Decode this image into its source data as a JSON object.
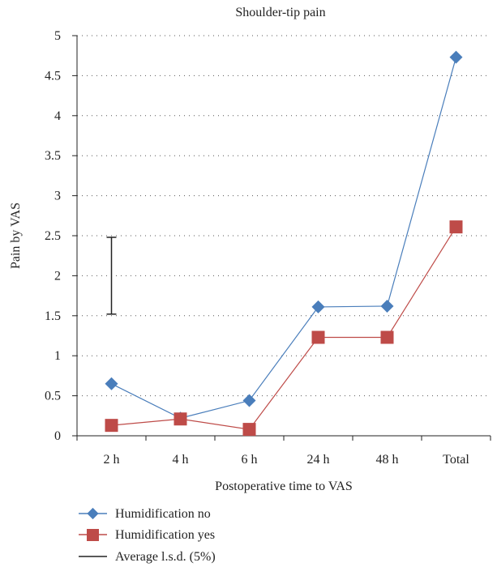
{
  "chart_data": {
    "type": "line",
    "title": "Shoulder-tip pain",
    "xlabel": "Postoperative time to VAS",
    "ylabel": "Pain by VAS",
    "categories": [
      "2 h",
      "4 h",
      "6 h",
      "24 h",
      "48 h",
      "Total"
    ],
    "ylim": [
      0,
      5
    ],
    "yticks": [
      "0",
      "0.5",
      "1",
      "1.5",
      "2",
      "2.5",
      "3",
      "3.5",
      "4",
      "4.5",
      "5"
    ],
    "grid": "horizontal dotted",
    "legend_position": "bottom-left",
    "series": [
      {
        "name": "Humidification no",
        "marker": "diamond",
        "color": "#4a7ebb",
        "values": [
          0.65,
          0.22,
          0.44,
          1.61,
          1.62,
          4.73
        ]
      },
      {
        "name": "Humidification yes",
        "marker": "square",
        "color": "#be4b48",
        "values": [
          0.13,
          0.21,
          0.08,
          1.23,
          1.23,
          2.61
        ]
      }
    ],
    "error_bar": {
      "name": "Average l.s.d. (5%)",
      "category": "2 h",
      "low": 1.52,
      "high": 2.48,
      "color": "#222222"
    }
  }
}
